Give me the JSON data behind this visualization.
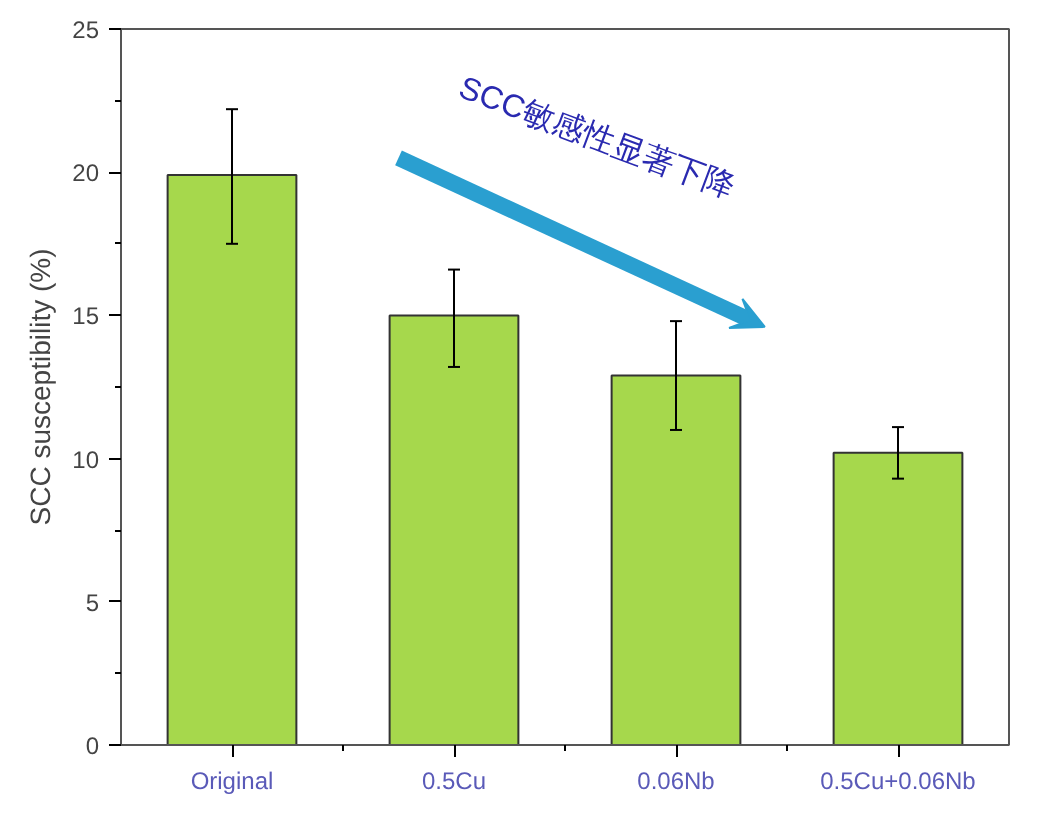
{
  "chart_data": {
    "type": "bar",
    "ylabel": "SCC susceptibility (%)",
    "categories": [
      "Original",
      "0.5Cu",
      "0.06Nb",
      "0.5Cu+0.06Nb"
    ],
    "values": [
      19.9,
      15.0,
      12.9,
      10.2
    ],
    "errors": [
      [
        17.5,
        22.2
      ],
      [
        13.2,
        16.6
      ],
      [
        11.0,
        14.8
      ],
      [
        9.3,
        11.1
      ]
    ],
    "color": "#a6d84c",
    "ylim": [
      0,
      25
    ],
    "yticks": [
      0,
      5,
      10,
      15,
      20,
      25
    ],
    "grid": false,
    "annotations": [
      "SCC敏感性显著下降"
    ]
  }
}
